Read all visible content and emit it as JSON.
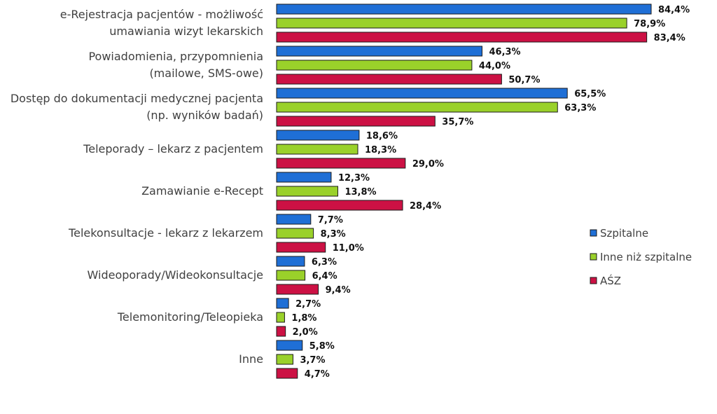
{
  "chart_data": {
    "type": "bar",
    "orientation": "horizontal",
    "categories": [
      [
        "e-Rejestracja pacjentów - możliwość",
        "umawiania wizyt lekarskich"
      ],
      [
        "Powiadomienia, przypomnienia",
        "(mailowe, SMS-owe)"
      ],
      [
        "Dostęp do dokumentacji medycznej pacjenta",
        "(np. wyników badań)"
      ],
      [
        "Teleporady – lekarz z pacjentem"
      ],
      [
        "Zamawianie e-Recept"
      ],
      [
        "Telekonsultacje - lekarz z lekarzem"
      ],
      [
        "Wideoporady/Wideokonsultacje"
      ],
      [
        "Telemonitoring/Teleopieka"
      ],
      [
        "Inne"
      ]
    ],
    "series": [
      {
        "name": "Szpitalne",
        "color": "#1f6fd6",
        "values": [
          84.4,
          46.3,
          65.5,
          18.6,
          12.3,
          7.7,
          6.3,
          2.7,
          5.8
        ],
        "labels": [
          "84,4%",
          "46,3%",
          "65,5%",
          "18,6%",
          "12,3%",
          "7,7%",
          "6,3%",
          "2,7%",
          "5,8%"
        ]
      },
      {
        "name": "Inne niż szpitalne",
        "color": "#9ad12a",
        "values": [
          78.9,
          44.0,
          63.3,
          18.3,
          13.8,
          8.3,
          6.4,
          1.8,
          3.7
        ],
        "labels": [
          "78,9%",
          "44,0%",
          "63,3%",
          "18,3%",
          "13,8%",
          "8,3%",
          "6,4%",
          "1,8%",
          "3,7%"
        ]
      },
      {
        "name": "AŚZ",
        "color": "#cc1144",
        "values": [
          83.4,
          50.7,
          35.7,
          29.0,
          28.4,
          11.0,
          9.4,
          2.0,
          4.7
        ],
        "labels": [
          "83,4%",
          "50,7%",
          "35,7%",
          "29,0%",
          "28,4%",
          "11,0%",
          "9,4%",
          "2,0%",
          "4,7%"
        ]
      }
    ],
    "value_axis": {
      "min": 0,
      "max": 100,
      "unit": "%"
    },
    "grid": false,
    "axis_line": false,
    "legend": "right"
  }
}
